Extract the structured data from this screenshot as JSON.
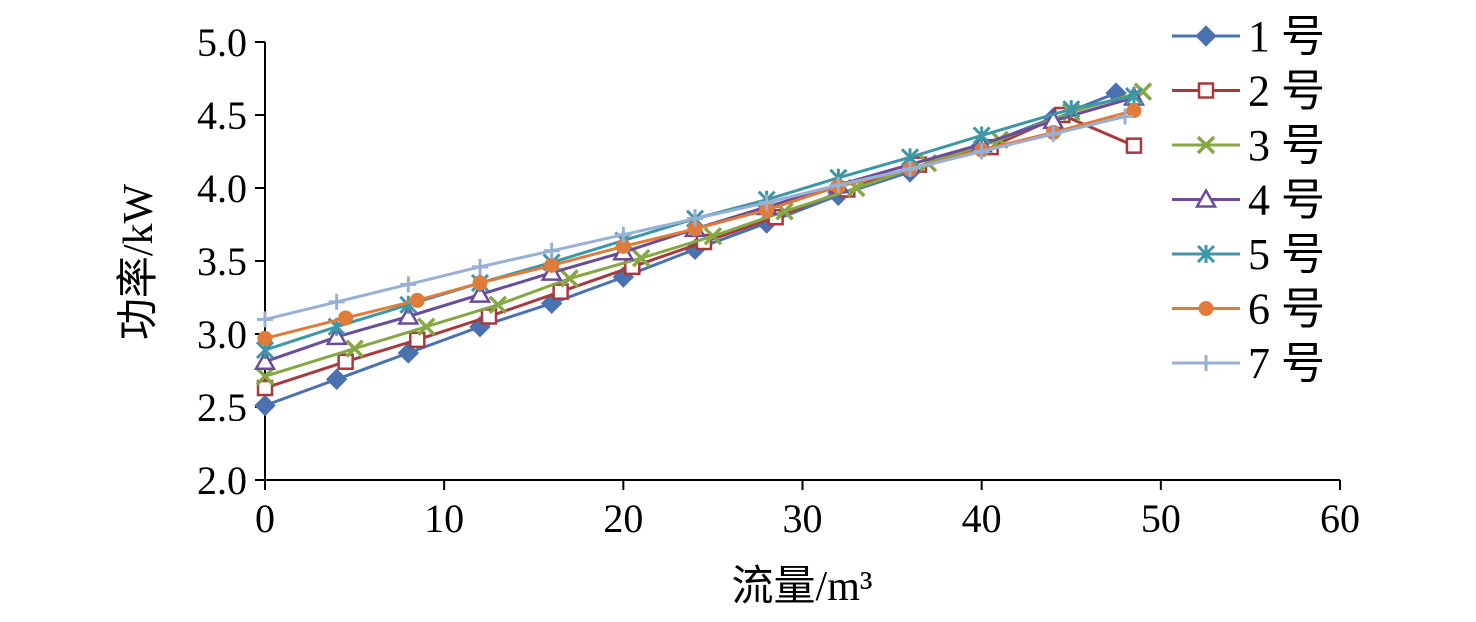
{
  "chart_data": {
    "type": "line",
    "title": "",
    "xlabel": "流量/m³",
    "ylabel": "功率/kW",
    "xlim": [
      0,
      60
    ],
    "ylim": [
      2.0,
      5.0
    ],
    "xticks": [
      "0",
      "10",
      "20",
      "30",
      "40",
      "50",
      "60"
    ],
    "yticks": [
      "2.0",
      "2.5",
      "3.0",
      "3.5",
      "4.0",
      "4.5",
      "5.0"
    ],
    "grid": false,
    "legend_position": "right",
    "series": [
      {
        "name": "1 号",
        "color": "#4a72b0",
        "marker": "diamond",
        "x": [
          0,
          4,
          8,
          12,
          16,
          20,
          24,
          28,
          32,
          36,
          40,
          44,
          47.5
        ],
        "y": [
          2.51,
          2.69,
          2.87,
          3.05,
          3.21,
          3.39,
          3.58,
          3.76,
          3.95,
          4.11,
          4.29,
          4.48,
          4.65
        ]
      },
      {
        "name": "2 号",
        "color": "#a83a3e",
        "marker": "square-open",
        "x": [
          0,
          4.5,
          8.5,
          12.5,
          16.5,
          20.5,
          24.5,
          28.5,
          32.5,
          36.5,
          40.5,
          44.5,
          48.5
        ],
        "y": [
          2.63,
          2.81,
          2.96,
          3.12,
          3.29,
          3.46,
          3.63,
          3.8,
          3.99,
          4.16,
          4.28,
          4.5,
          4.29
        ]
      },
      {
        "name": "3 号",
        "color": "#86a844",
        "marker": "x",
        "x": [
          0,
          5,
          9,
          13,
          17,
          21,
          25,
          29,
          33,
          37,
          41,
          45,
          49
        ],
        "y": [
          2.71,
          2.9,
          3.05,
          3.2,
          3.38,
          3.52,
          3.67,
          3.84,
          4.0,
          4.17,
          4.33,
          4.52,
          4.66
        ]
      },
      {
        "name": "4 号",
        "color": "#6b4c9a",
        "marker": "triangle-open",
        "x": [
          0,
          4,
          8,
          12,
          16,
          20,
          24,
          28,
          32,
          36,
          40,
          44,
          48.5
        ],
        "y": [
          2.81,
          2.98,
          3.12,
          3.27,
          3.42,
          3.56,
          3.72,
          3.87,
          4.02,
          4.16,
          4.3,
          4.46,
          4.62
        ]
      },
      {
        "name": "5 号",
        "color": "#3e97a7",
        "marker": "asterisk",
        "x": [
          0,
          4,
          8,
          12,
          16,
          20,
          24,
          28,
          32,
          36,
          40,
          45,
          48.5
        ],
        "y": [
          2.89,
          3.05,
          3.2,
          3.35,
          3.49,
          3.64,
          3.79,
          3.92,
          4.07,
          4.21,
          4.36,
          4.54,
          4.63
        ]
      },
      {
        "name": "6 号",
        "color": "#e07b39",
        "marker": "circle",
        "x": [
          0,
          4.5,
          8.5,
          12,
          16,
          20,
          24,
          28,
          32,
          36,
          40,
          44,
          48.5
        ],
        "y": [
          2.97,
          3.11,
          3.23,
          3.35,
          3.47,
          3.6,
          3.72,
          3.85,
          4.01,
          4.13,
          4.26,
          4.38,
          4.53
        ]
      },
      {
        "name": "7 号",
        "color": "#98afd6",
        "marker": "plus",
        "x": [
          0,
          4,
          8,
          12,
          16,
          20,
          24,
          28,
          32,
          36,
          40,
          44,
          48
        ],
        "y": [
          3.1,
          3.22,
          3.34,
          3.46,
          3.57,
          3.68,
          3.79,
          3.9,
          4.02,
          4.13,
          4.25,
          4.37,
          4.49
        ]
      }
    ]
  }
}
